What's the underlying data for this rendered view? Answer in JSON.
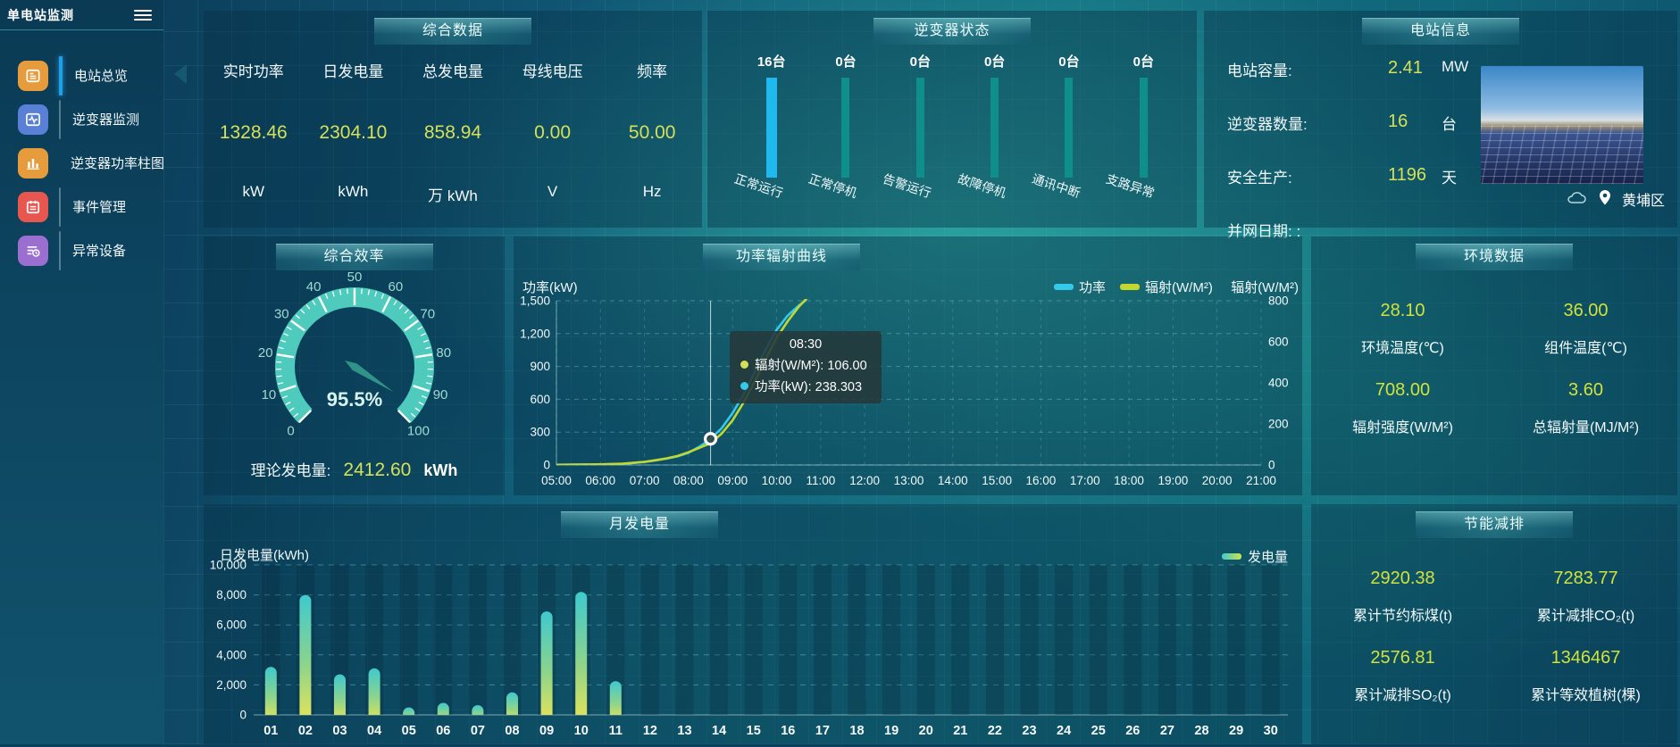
{
  "app": {
    "title": "单电站监测"
  },
  "colors": {
    "accent_yellow": "#d4e157",
    "bright_blue": "#1fb9ef",
    "teal_bar": "#0f8f8c",
    "line_power": "#35c9ea",
    "line_radiation": "#c3d72f",
    "gauge_band": "#4ecbbc"
  },
  "sidebar": {
    "items": [
      {
        "label": "电站总览",
        "icon": "overview-icon",
        "icon_bg": "#e69c3c",
        "active": true
      },
      {
        "label": "逆变器监测",
        "icon": "inverter-monitor-icon",
        "icon_bg": "#5a7fd6",
        "active": false
      },
      {
        "label": "逆变器功率柱图",
        "icon": "inverter-power-bars-icon",
        "icon_bg": "#e69c3c",
        "active": false
      },
      {
        "label": "事件管理",
        "icon": "event-management-icon",
        "icon_bg": "#e85650",
        "active": false
      },
      {
        "label": "异常设备",
        "icon": "abnormal-device-icon",
        "icon_bg": "#9b6fd0",
        "active": false
      }
    ]
  },
  "summary": {
    "title": "综合数据",
    "metrics": [
      {
        "label": "实时功率",
        "value": "1328.46",
        "unit": "kW"
      },
      {
        "label": "日发电量",
        "value": "2304.10",
        "unit": "kWh"
      },
      {
        "label": "总发电量",
        "value": "858.94",
        "unit": "万 kWh"
      },
      {
        "label": "母线电压",
        "value": "0.00",
        "unit": "V"
      },
      {
        "label": "频率",
        "value": "50.00",
        "unit": "Hz"
      }
    ]
  },
  "inverter_status": {
    "title": "逆变器状态",
    "bars": [
      {
        "count": "16台",
        "label": "正常运行",
        "highlight": true
      },
      {
        "count": "0台",
        "label": "正常停机",
        "highlight": false
      },
      {
        "count": "0台",
        "label": "告警运行",
        "highlight": false
      },
      {
        "count": "0台",
        "label": "故障停机",
        "highlight": false
      },
      {
        "count": "0台",
        "label": "通讯中断",
        "highlight": false
      },
      {
        "count": "0台",
        "label": "支路异常",
        "highlight": false
      }
    ]
  },
  "station_info": {
    "title": "电站信息",
    "rows": [
      {
        "label": "电站容量:",
        "value": "2.41",
        "unit": "MW"
      },
      {
        "label": "逆变器数量:",
        "value": "16",
        "unit": "台"
      },
      {
        "label": "安全生产:",
        "value": "1196",
        "unit": "天"
      },
      {
        "label": "并网日期: :",
        "value": "",
        "unit": ""
      }
    ],
    "location": "黄埔区"
  },
  "efficiency": {
    "title": "综合效率",
    "gauge_display": "95.5%",
    "theory": {
      "label": "理论发电量:",
      "value": "2412.60",
      "unit": "kWh"
    }
  },
  "power_curve": {
    "title": "功率辐射曲线",
    "y_left_label": "功率(kW)",
    "y_right_label": "辐射(W/M²)",
    "legend": [
      {
        "name": "功率",
        "color": "#35c9ea"
      },
      {
        "name": "辐射(W/M²)",
        "color": "#c3d72f"
      }
    ],
    "tooltip": {
      "time": "08:30",
      "rows": [
        {
          "dot": "#d4e157",
          "text": "辐射(W/M²): 106.00"
        },
        {
          "dot": "#35c9ea",
          "text": "功率(kW): 238.303"
        }
      ]
    }
  },
  "environment": {
    "title": "环境数据",
    "items": [
      {
        "value": "28.10",
        "label": "环境温度(℃)"
      },
      {
        "value": "36.00",
        "label": "组件温度(℃)"
      },
      {
        "value": "708.00",
        "label": "辐射强度(W/M²)"
      },
      {
        "value": "3.60",
        "label": "总辐射量(MJ/M²)"
      }
    ]
  },
  "monthly": {
    "title": "月发电量",
    "y_label": "日发电量(kWh)",
    "legend": "发电量"
  },
  "energy_saving": {
    "title": "节能减排",
    "items": [
      {
        "value": "2920.38",
        "label": "累计节约标煤(t)"
      },
      {
        "value": "7283.77",
        "label": "累计减排CO₂(t)"
      },
      {
        "value": "2576.81",
        "label": "累计减排SO₂(t)"
      },
      {
        "value": "1346467",
        "label": "累计等效植树(棵)"
      }
    ]
  },
  "chart_data": {
    "inverter_status": {
      "type": "bar",
      "title": "逆变器状态",
      "categories": [
        "正常运行",
        "正常停机",
        "告警运行",
        "故障停机",
        "通讯中断",
        "支路异常"
      ],
      "values": [
        16,
        0,
        0,
        0,
        0,
        0
      ],
      "unit": "台"
    },
    "efficiency_gauge": {
      "type": "gauge",
      "title": "综合效率",
      "value": 95.5,
      "min": 0,
      "max": 100,
      "major_tick_step": 10,
      "minor_tick_step": 2,
      "label": "95.5%"
    },
    "power_curve": {
      "type": "line",
      "title": "功率辐射曲线",
      "x_range_hours": [
        5,
        21
      ],
      "x_ticks": [
        "05:00",
        "06:00",
        "07:00",
        "08:00",
        "09:00",
        "10:00",
        "11:00",
        "12:00",
        "13:00",
        "14:00",
        "15:00",
        "16:00",
        "17:00",
        "18:00",
        "19:00",
        "20:00",
        "21:00"
      ],
      "ylim_left": [
        0,
        1500
      ],
      "yticks_left": [
        0,
        300,
        600,
        900,
        1200,
        1500
      ],
      "ylim_right": [
        0,
        800
      ],
      "yticks_right": [
        0,
        200,
        400,
        600,
        800
      ],
      "hover_x": 8.5,
      "hover_power": 238.303,
      "series": [
        {
          "name": "功率",
          "axis": "left",
          "color": "#35c9ea",
          "x": [
            5,
            5.5,
            6,
            6.5,
            7,
            7.25,
            7.5,
            7.75,
            8,
            8.25,
            8.5,
            8.75,
            9,
            9.25,
            9.5,
            9.75,
            10,
            10.25,
            10.5,
            10.65
          ],
          "y": [
            2,
            3,
            5,
            10,
            28,
            42,
            58,
            78,
            112,
            168,
            238.3,
            335,
            475,
            645,
            845,
            1055,
            1235,
            1365,
            1455,
            1500
          ]
        },
        {
          "name": "辐射(W/M²)",
          "axis": "right",
          "color": "#c3d72f",
          "x": [
            5,
            5.5,
            6,
            6.5,
            7,
            7.25,
            7.5,
            7.75,
            8,
            8.25,
            8.5,
            8.75,
            9,
            9.25,
            9.5,
            9.75,
            10,
            10.25,
            10.5,
            10.7
          ],
          "y": [
            1,
            2,
            3,
            6,
            15,
            23,
            32,
            44,
            62,
            84,
            106,
            152,
            218,
            305,
            405,
            515,
            620,
            700,
            770,
            815
          ]
        }
      ]
    },
    "monthly_generation": {
      "type": "bar",
      "title": "月发电量",
      "ylabel": "日发电量(kWh)",
      "ylim": [
        0,
        10000
      ],
      "yticks": [
        0,
        2000,
        4000,
        6000,
        8000,
        10000
      ],
      "legend": "发电量",
      "categories": [
        "01",
        "02",
        "03",
        "04",
        "05",
        "06",
        "07",
        "08",
        "09",
        "10",
        "11",
        "12",
        "13",
        "14",
        "15",
        "16",
        "17",
        "18",
        "19",
        "20",
        "21",
        "22",
        "23",
        "24",
        "25",
        "26",
        "27",
        "28",
        "29",
        "30"
      ],
      "values": [
        3200,
        8000,
        2700,
        3100,
        500,
        800,
        650,
        1500,
        6900,
        8200,
        2250,
        0,
        0,
        0,
        0,
        0,
        0,
        0,
        0,
        0,
        0,
        0,
        0,
        0,
        0,
        0,
        0,
        0,
        0,
        0
      ]
    }
  }
}
